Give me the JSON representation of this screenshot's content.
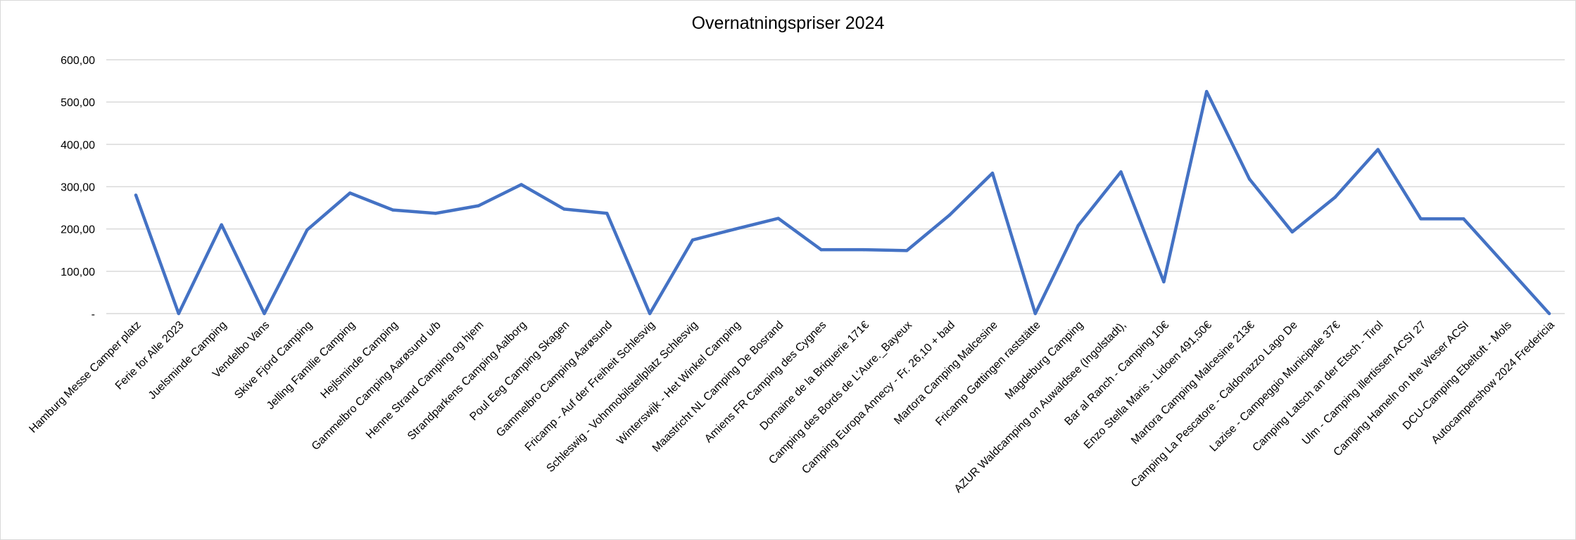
{
  "chart_data": {
    "type": "line",
    "title": "Overnatningspriser 2024",
    "xlabel": "",
    "ylabel": "",
    "ylim": [
      0,
      600
    ],
    "yticks": [
      0,
      100,
      200,
      300,
      400,
      500,
      600
    ],
    "ytick_labels": [
      "-",
      "100,00",
      "200,00",
      "300,00",
      "400,00",
      "500,00",
      "600,00"
    ],
    "grid": true,
    "legend": "none",
    "line_color": "#4472C4",
    "categories": [
      "Hamburg Messe Camper platz",
      "Ferie for Alle 2023",
      "Juelsminde Camping",
      "Vendelbo Vans",
      "Skive Fjord Camping",
      "Jelling Familie Camping",
      "Hejlsminde Camping",
      "Gammelbro Camping Aarøsund u/b",
      "Henne Strand Camping og hjem",
      "Strandparkens Camping Aalborg",
      "Poul Eeg Camping Skagen",
      "Gammelbro Camping Aarøsund",
      "Fricamp - Auf der Freiheit Schlesvig",
      "Schleswig - Vohnmobilstellplatz Schlesvig",
      "Winterswijk - Het Winkel Camping",
      "Maastricht NL Camping De Bosrand",
      "Amiens FR Camping des Cygnes",
      "Domaine de la Briquerie 171€",
      "Camping des Bords de L'Aure._Bayeux",
      "Camping Europa Annecy - Fr. 26,10 + bad",
      "Martora Camping Malcesine",
      "Fricamp Gøttingen raststätte",
      "Magdeburg Camping",
      "AZUR Waldcamping on Auwaldsee (Ingolstadt),",
      "Bar al Ranch - Camping 10€",
      "Enzo Stella Maris - Lidoen 491,50€",
      "Martora Camping Malcesine 213€",
      "Camping La Pescatore - Caldonazzo Lago De",
      "Lazise - Campeggio Municipale 37€",
      "Camping Latsch an der Etsch - Tirol",
      "Ulm - Camping illertissen ACSI 27",
      "Camping Hameln on the Weser ACSI",
      "DCU-Camping Ebeltoft - Mols",
      "Autocampershow 2024 Fredericia"
    ],
    "series": [
      {
        "values": [
          280,
          0,
          210,
          0,
          198,
          285,
          245,
          237,
          255,
          305,
          247,
          237,
          0,
          174,
          200,
          225,
          151,
          151,
          149,
          233,
          332,
          0,
          208,
          335,
          75,
          525,
          318,
          193,
          275,
          388,
          224,
          224,
          112,
          0
        ]
      }
    ]
  }
}
